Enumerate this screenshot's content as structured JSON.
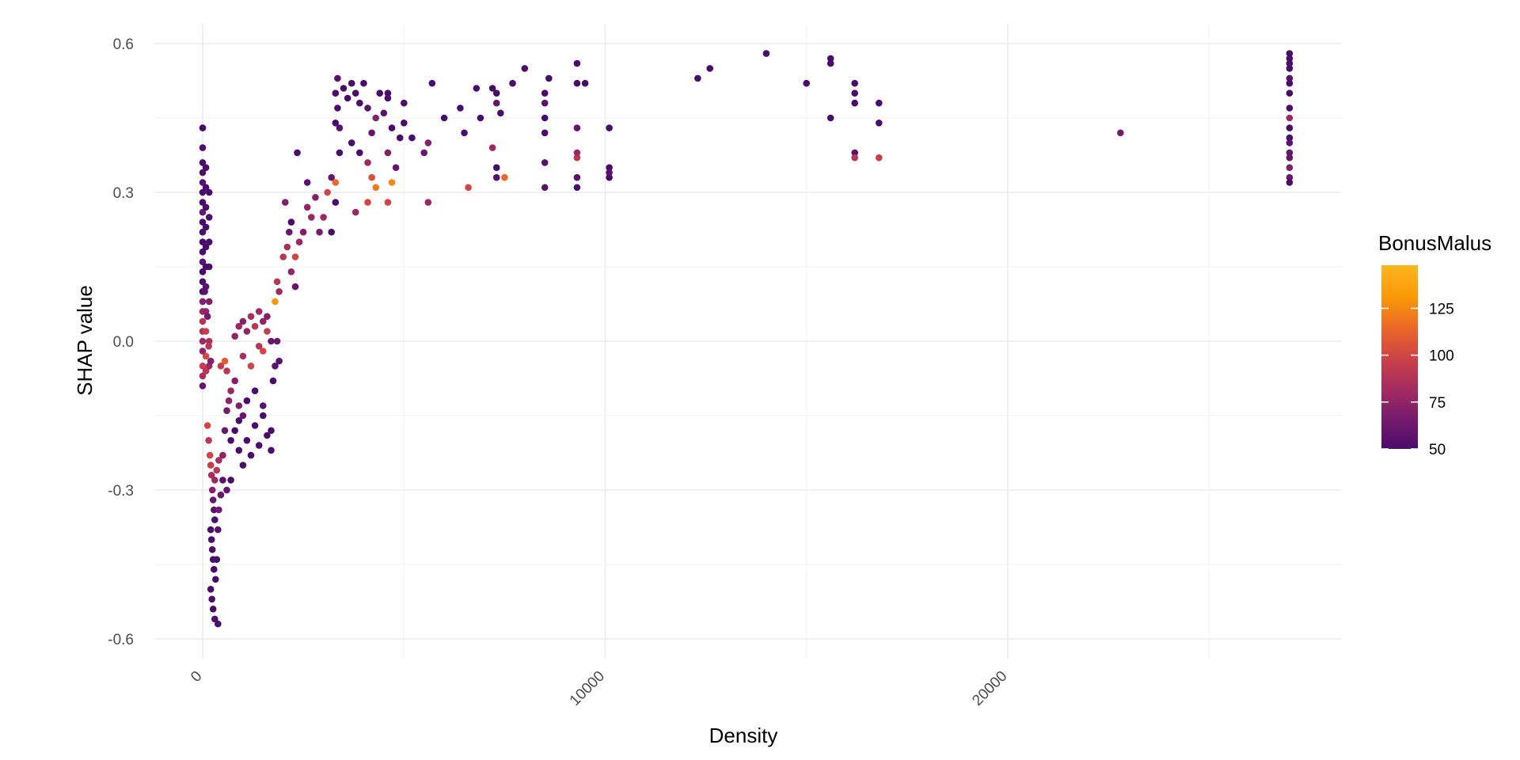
{
  "chart_data": {
    "type": "scatter",
    "xlabel": "Density",
    "ylabel": "SHAP value",
    "xlim": [
      -1200,
      28300
    ],
    "ylim": [
      -0.64,
      0.64
    ],
    "x_ticks": [
      0,
      10000,
      20000
    ],
    "x_tick_labels": [
      "0",
      "10000",
      "20000"
    ],
    "x_minor_ticks": [
      5000,
      15000,
      25000
    ],
    "y_ticks": [
      -0.6,
      -0.3,
      0.0,
      0.3,
      0.6
    ],
    "y_tick_labels": [
      "-0.6",
      "-0.3",
      "0.0",
      "0.3",
      "0.6"
    ],
    "y_minor_ticks": [
      -0.45,
      -0.15,
      0.15,
      0.45
    ],
    "grid": true,
    "color_scale": {
      "name": "BonusMalus",
      "min": 50,
      "max": 148,
      "ticks": [
        50,
        75,
        100,
        125
      ],
      "tick_labels": [
        "50",
        "75",
        "100",
        "125"
      ],
      "stops": [
        "#4a0c6b",
        "#781c6d",
        "#a52c60",
        "#cf4446",
        "#ed6925",
        "#fb9b06",
        "#fcb520"
      ],
      "placement": "right"
    },
    "points": [
      [
        0,
        0.43,
        50
      ],
      [
        0,
        0.39,
        52
      ],
      [
        0,
        0.36,
        50
      ],
      [
        0,
        0.34,
        50
      ],
      [
        0,
        0.32,
        55
      ],
      [
        0,
        0.3,
        50
      ],
      [
        0,
        0.28,
        50
      ],
      [
        0,
        0.26,
        60
      ],
      [
        0,
        0.24,
        50
      ],
      [
        0,
        0.22,
        50
      ],
      [
        0,
        0.2,
        50
      ],
      [
        0,
        0.18,
        50
      ],
      [
        0,
        0.16,
        55
      ],
      [
        0,
        0.14,
        50
      ],
      [
        0,
        0.12,
        50
      ],
      [
        0,
        0.1,
        50
      ],
      [
        0,
        0.08,
        70
      ],
      [
        0,
        0.06,
        80
      ],
      [
        0,
        0.04,
        90
      ],
      [
        0,
        0.02,
        85
      ],
      [
        0,
        0.0,
        80
      ],
      [
        0,
        -0.02,
        75
      ],
      [
        0,
        -0.05,
        95
      ],
      [
        0,
        -0.07,
        85
      ],
      [
        0,
        -0.09,
        60
      ],
      [
        80,
        0.35,
        50
      ],
      [
        80,
        0.31,
        50
      ],
      [
        80,
        0.27,
        50
      ],
      [
        80,
        0.23,
        50
      ],
      [
        80,
        0.19,
        50
      ],
      [
        80,
        0.15,
        50
      ],
      [
        80,
        0.11,
        55
      ],
      [
        80,
        0.06,
        75
      ],
      [
        80,
        0.02,
        95
      ],
      [
        80,
        -0.03,
        100
      ],
      [
        80,
        -0.06,
        90
      ],
      [
        160,
        0.3,
        50
      ],
      [
        160,
        0.25,
        50
      ],
      [
        160,
        0.2,
        50
      ],
      [
        160,
        0.15,
        50
      ],
      [
        160,
        0.08,
        70
      ],
      [
        160,
        0.0,
        85
      ],
      [
        160,
        -0.05,
        80
      ],
      [
        50,
        0.1,
        55
      ],
      [
        120,
        0.05,
        65
      ],
      [
        150,
        -0.01,
        90
      ],
      [
        200,
        -0.04,
        70
      ],
      [
        120,
        -0.17,
        100
      ],
      [
        150,
        -0.2,
        90
      ],
      [
        180,
        -0.23,
        100
      ],
      [
        200,
        -0.25,
        95
      ],
      [
        220,
        -0.27,
        85
      ],
      [
        240,
        -0.3,
        70
      ],
      [
        260,
        -0.32,
        60
      ],
      [
        280,
        -0.34,
        55
      ],
      [
        300,
        -0.36,
        50
      ],
      [
        200,
        -0.38,
        50
      ],
      [
        220,
        -0.4,
        50
      ],
      [
        240,
        -0.42,
        50
      ],
      [
        260,
        -0.44,
        50
      ],
      [
        280,
        -0.46,
        50
      ],
      [
        200,
        -0.5,
        50
      ],
      [
        230,
        -0.52,
        50
      ],
      [
        260,
        -0.54,
        50
      ],
      [
        300,
        -0.56,
        50
      ],
      [
        380,
        -0.57,
        50
      ],
      [
        320,
        -0.48,
        50
      ],
      [
        350,
        -0.44,
        50
      ],
      [
        380,
        -0.38,
        55
      ],
      [
        400,
        -0.34,
        65
      ],
      [
        450,
        -0.31,
        60
      ],
      [
        500,
        -0.28,
        55
      ],
      [
        300,
        -0.28,
        80
      ],
      [
        350,
        -0.26,
        90
      ],
      [
        400,
        -0.24,
        85
      ],
      [
        500,
        -0.23,
        75
      ],
      [
        600,
        -0.3,
        60
      ],
      [
        700,
        -0.28,
        50
      ],
      [
        550,
        -0.18,
        60
      ],
      [
        600,
        -0.14,
        65
      ],
      [
        650,
        -0.12,
        75
      ],
      [
        700,
        -0.1,
        80
      ],
      [
        800,
        -0.08,
        70
      ],
      [
        900,
        -0.13,
        70
      ],
      [
        1000,
        -0.15,
        60
      ],
      [
        450,
        -0.05,
        95
      ],
      [
        550,
        -0.04,
        110
      ],
      [
        600,
        -0.06,
        90
      ],
      [
        700,
        -0.2,
        50
      ],
      [
        800,
        -0.18,
        50
      ],
      [
        900,
        -0.22,
        50
      ],
      [
        1000,
        -0.25,
        50
      ],
      [
        1100,
        -0.2,
        50
      ],
      [
        1200,
        -0.23,
        50
      ],
      [
        1300,
        -0.17,
        50
      ],
      [
        1400,
        -0.21,
        50
      ],
      [
        1500,
        -0.15,
        50
      ],
      [
        1600,
        -0.19,
        50
      ],
      [
        1700,
        -0.22,
        50
      ],
      [
        900,
        -0.16,
        50
      ],
      [
        1100,
        -0.12,
        50
      ],
      [
        1300,
        -0.1,
        50
      ],
      [
        1500,
        -0.13,
        55
      ],
      [
        1700,
        -0.18,
        50
      ],
      [
        1750,
        -0.08,
        50
      ],
      [
        800,
        0.01,
        75
      ],
      [
        900,
        0.03,
        80
      ],
      [
        1000,
        0.04,
        70
      ],
      [
        1100,
        0.02,
        75
      ],
      [
        1200,
        0.05,
        85
      ],
      [
        1300,
        0.03,
        90
      ],
      [
        1400,
        0.06,
        80
      ],
      [
        1500,
        0.04,
        75
      ],
      [
        1600,
        0.05,
        70
      ],
      [
        1000,
        -0.03,
        85
      ],
      [
        1200,
        -0.05,
        100
      ],
      [
        1400,
        -0.01,
        90
      ],
      [
        1500,
        -0.02,
        100
      ],
      [
        1600,
        0.02,
        95
      ],
      [
        1800,
        0.08,
        130
      ],
      [
        1850,
        0.12,
        90
      ],
      [
        1900,
        0.1,
        80
      ],
      [
        1850,
        0.0,
        60
      ],
      [
        1900,
        -0.04,
        55
      ],
      [
        1800,
        -0.05,
        55
      ],
      [
        1700,
        0.0,
        60
      ],
      [
        2000,
        0.17,
        90
      ],
      [
        2100,
        0.19,
        85
      ],
      [
        2200,
        0.14,
        75
      ],
      [
        2300,
        0.17,
        100
      ],
      [
        2400,
        0.2,
        80
      ],
      [
        2500,
        0.22,
        70
      ],
      [
        2600,
        0.27,
        75
      ],
      [
        2700,
        0.25,
        80
      ],
      [
        2800,
        0.29,
        70
      ],
      [
        2900,
        0.22,
        65
      ],
      [
        3000,
        0.25,
        80
      ],
      [
        3100,
        0.3,
        100
      ],
      [
        2050,
        0.28,
        70
      ],
      [
        2150,
        0.22,
        60
      ],
      [
        2300,
        0.11,
        60
      ],
      [
        2350,
        0.38,
        50
      ],
      [
        2200,
        0.24,
        50
      ],
      [
        2600,
        0.32,
        55
      ],
      [
        3200,
        0.33,
        60
      ],
      [
        3300,
        0.32,
        115
      ],
      [
        3300,
        0.28,
        50
      ],
      [
        3200,
        0.22,
        50
      ],
      [
        3400,
        0.38,
        50
      ],
      [
        3300,
        0.44,
        50
      ],
      [
        3350,
        0.47,
        50
      ],
      [
        3300,
        0.5,
        50
      ],
      [
        3350,
        0.53,
        55
      ],
      [
        3400,
        0.43,
        55
      ],
      [
        3500,
        0.51,
        50
      ],
      [
        3600,
        0.49,
        50
      ],
      [
        3700,
        0.52,
        50
      ],
      [
        3800,
        0.5,
        50
      ],
      [
        3900,
        0.48,
        50
      ],
      [
        4000,
        0.52,
        50
      ],
      [
        4100,
        0.47,
        55
      ],
      [
        4200,
        0.42,
        60
      ],
      [
        4300,
        0.45,
        70
      ],
      [
        4400,
        0.5,
        50
      ],
      [
        4500,
        0.46,
        55
      ],
      [
        4600,
        0.49,
        50
      ],
      [
        3700,
        0.4,
        50
      ],
      [
        3900,
        0.38,
        50
      ],
      [
        4100,
        0.36,
        80
      ],
      [
        4200,
        0.33,
        105
      ],
      [
        4300,
        0.31,
        120
      ],
      [
        3800,
        0.26,
        80
      ],
      [
        4100,
        0.28,
        100
      ],
      [
        4600,
        0.28,
        100
      ],
      [
        4700,
        0.32,
        125
      ],
      [
        4800,
        0.35,
        60
      ],
      [
        4900,
        0.41,
        50
      ],
      [
        5000,
        0.44,
        50
      ],
      [
        4700,
        0.43,
        50
      ],
      [
        4600,
        0.38,
        70
      ],
      [
        4600,
        0.5,
        50
      ],
      [
        5000,
        0.48,
        50
      ],
      [
        5500,
        0.38,
        60
      ],
      [
        5600,
        0.4,
        70
      ],
      [
        5600,
        0.28,
        80
      ],
      [
        5700,
        0.52,
        50
      ],
      [
        5200,
        0.41,
        50
      ],
      [
        6000,
        0.45,
        50
      ],
      [
        6400,
        0.47,
        50
      ],
      [
        6500,
        0.42,
        50
      ],
      [
        6600,
        0.31,
        100
      ],
      [
        6800,
        0.51,
        50
      ],
      [
        6900,
        0.45,
        50
      ],
      [
        7200,
        0.51,
        50
      ],
      [
        7300,
        0.5,
        50
      ],
      [
        7300,
        0.48,
        60
      ],
      [
        7200,
        0.39,
        80
      ],
      [
        7400,
        0.46,
        50
      ],
      [
        7300,
        0.33,
        55
      ],
      [
        7500,
        0.33,
        115
      ],
      [
        7300,
        0.35,
        50
      ],
      [
        7700,
        0.52,
        50
      ],
      [
        8000,
        0.55,
        50
      ],
      [
        8500,
        0.5,
        50
      ],
      [
        8500,
        0.45,
        50
      ],
      [
        8500,
        0.42,
        50
      ],
      [
        8500,
        0.36,
        55
      ],
      [
        8500,
        0.31,
        55
      ],
      [
        8500,
        0.48,
        55
      ],
      [
        8600,
        0.53,
        50
      ],
      [
        9300,
        0.56,
        50
      ],
      [
        9300,
        0.52,
        50
      ],
      [
        9300,
        0.43,
        60
      ],
      [
        9300,
        0.37,
        90
      ],
      [
        9300,
        0.38,
        80
      ],
      [
        9300,
        0.33,
        55
      ],
      [
        9300,
        0.31,
        50
      ],
      [
        9500,
        0.52,
        50
      ],
      [
        10100,
        0.43,
        50
      ],
      [
        10100,
        0.35,
        50
      ],
      [
        10100,
        0.33,
        50
      ],
      [
        10100,
        0.34,
        55
      ],
      [
        12300,
        0.53,
        50
      ],
      [
        12600,
        0.55,
        50
      ],
      [
        14000,
        0.58,
        50
      ],
      [
        15000,
        0.52,
        50
      ],
      [
        15600,
        0.57,
        50
      ],
      [
        15600,
        0.56,
        50
      ],
      [
        15600,
        0.45,
        50
      ],
      [
        16200,
        0.52,
        50
      ],
      [
        16200,
        0.5,
        50
      ],
      [
        16200,
        0.48,
        50
      ],
      [
        16200,
        0.38,
        55
      ],
      [
        16200,
        0.37,
        90
      ],
      [
        16800,
        0.48,
        50
      ],
      [
        16800,
        0.44,
        50
      ],
      [
        16800,
        0.37,
        95
      ],
      [
        22800,
        0.42,
        65
      ],
      [
        27000,
        0.58,
        50
      ],
      [
        27000,
        0.57,
        50
      ],
      [
        27000,
        0.56,
        50
      ],
      [
        27000,
        0.55,
        50
      ],
      [
        27000,
        0.53,
        55
      ],
      [
        27000,
        0.52,
        50
      ],
      [
        27000,
        0.5,
        50
      ],
      [
        27000,
        0.47,
        50
      ],
      [
        27000,
        0.45,
        80
      ],
      [
        27000,
        0.43,
        50
      ],
      [
        27000,
        0.41,
        50
      ],
      [
        27000,
        0.4,
        55
      ],
      [
        27000,
        0.38,
        60
      ],
      [
        27000,
        0.37,
        60
      ],
      [
        27000,
        0.35,
        70
      ],
      [
        27000,
        0.33,
        60
      ],
      [
        27000,
        0.32,
        50
      ]
    ]
  }
}
